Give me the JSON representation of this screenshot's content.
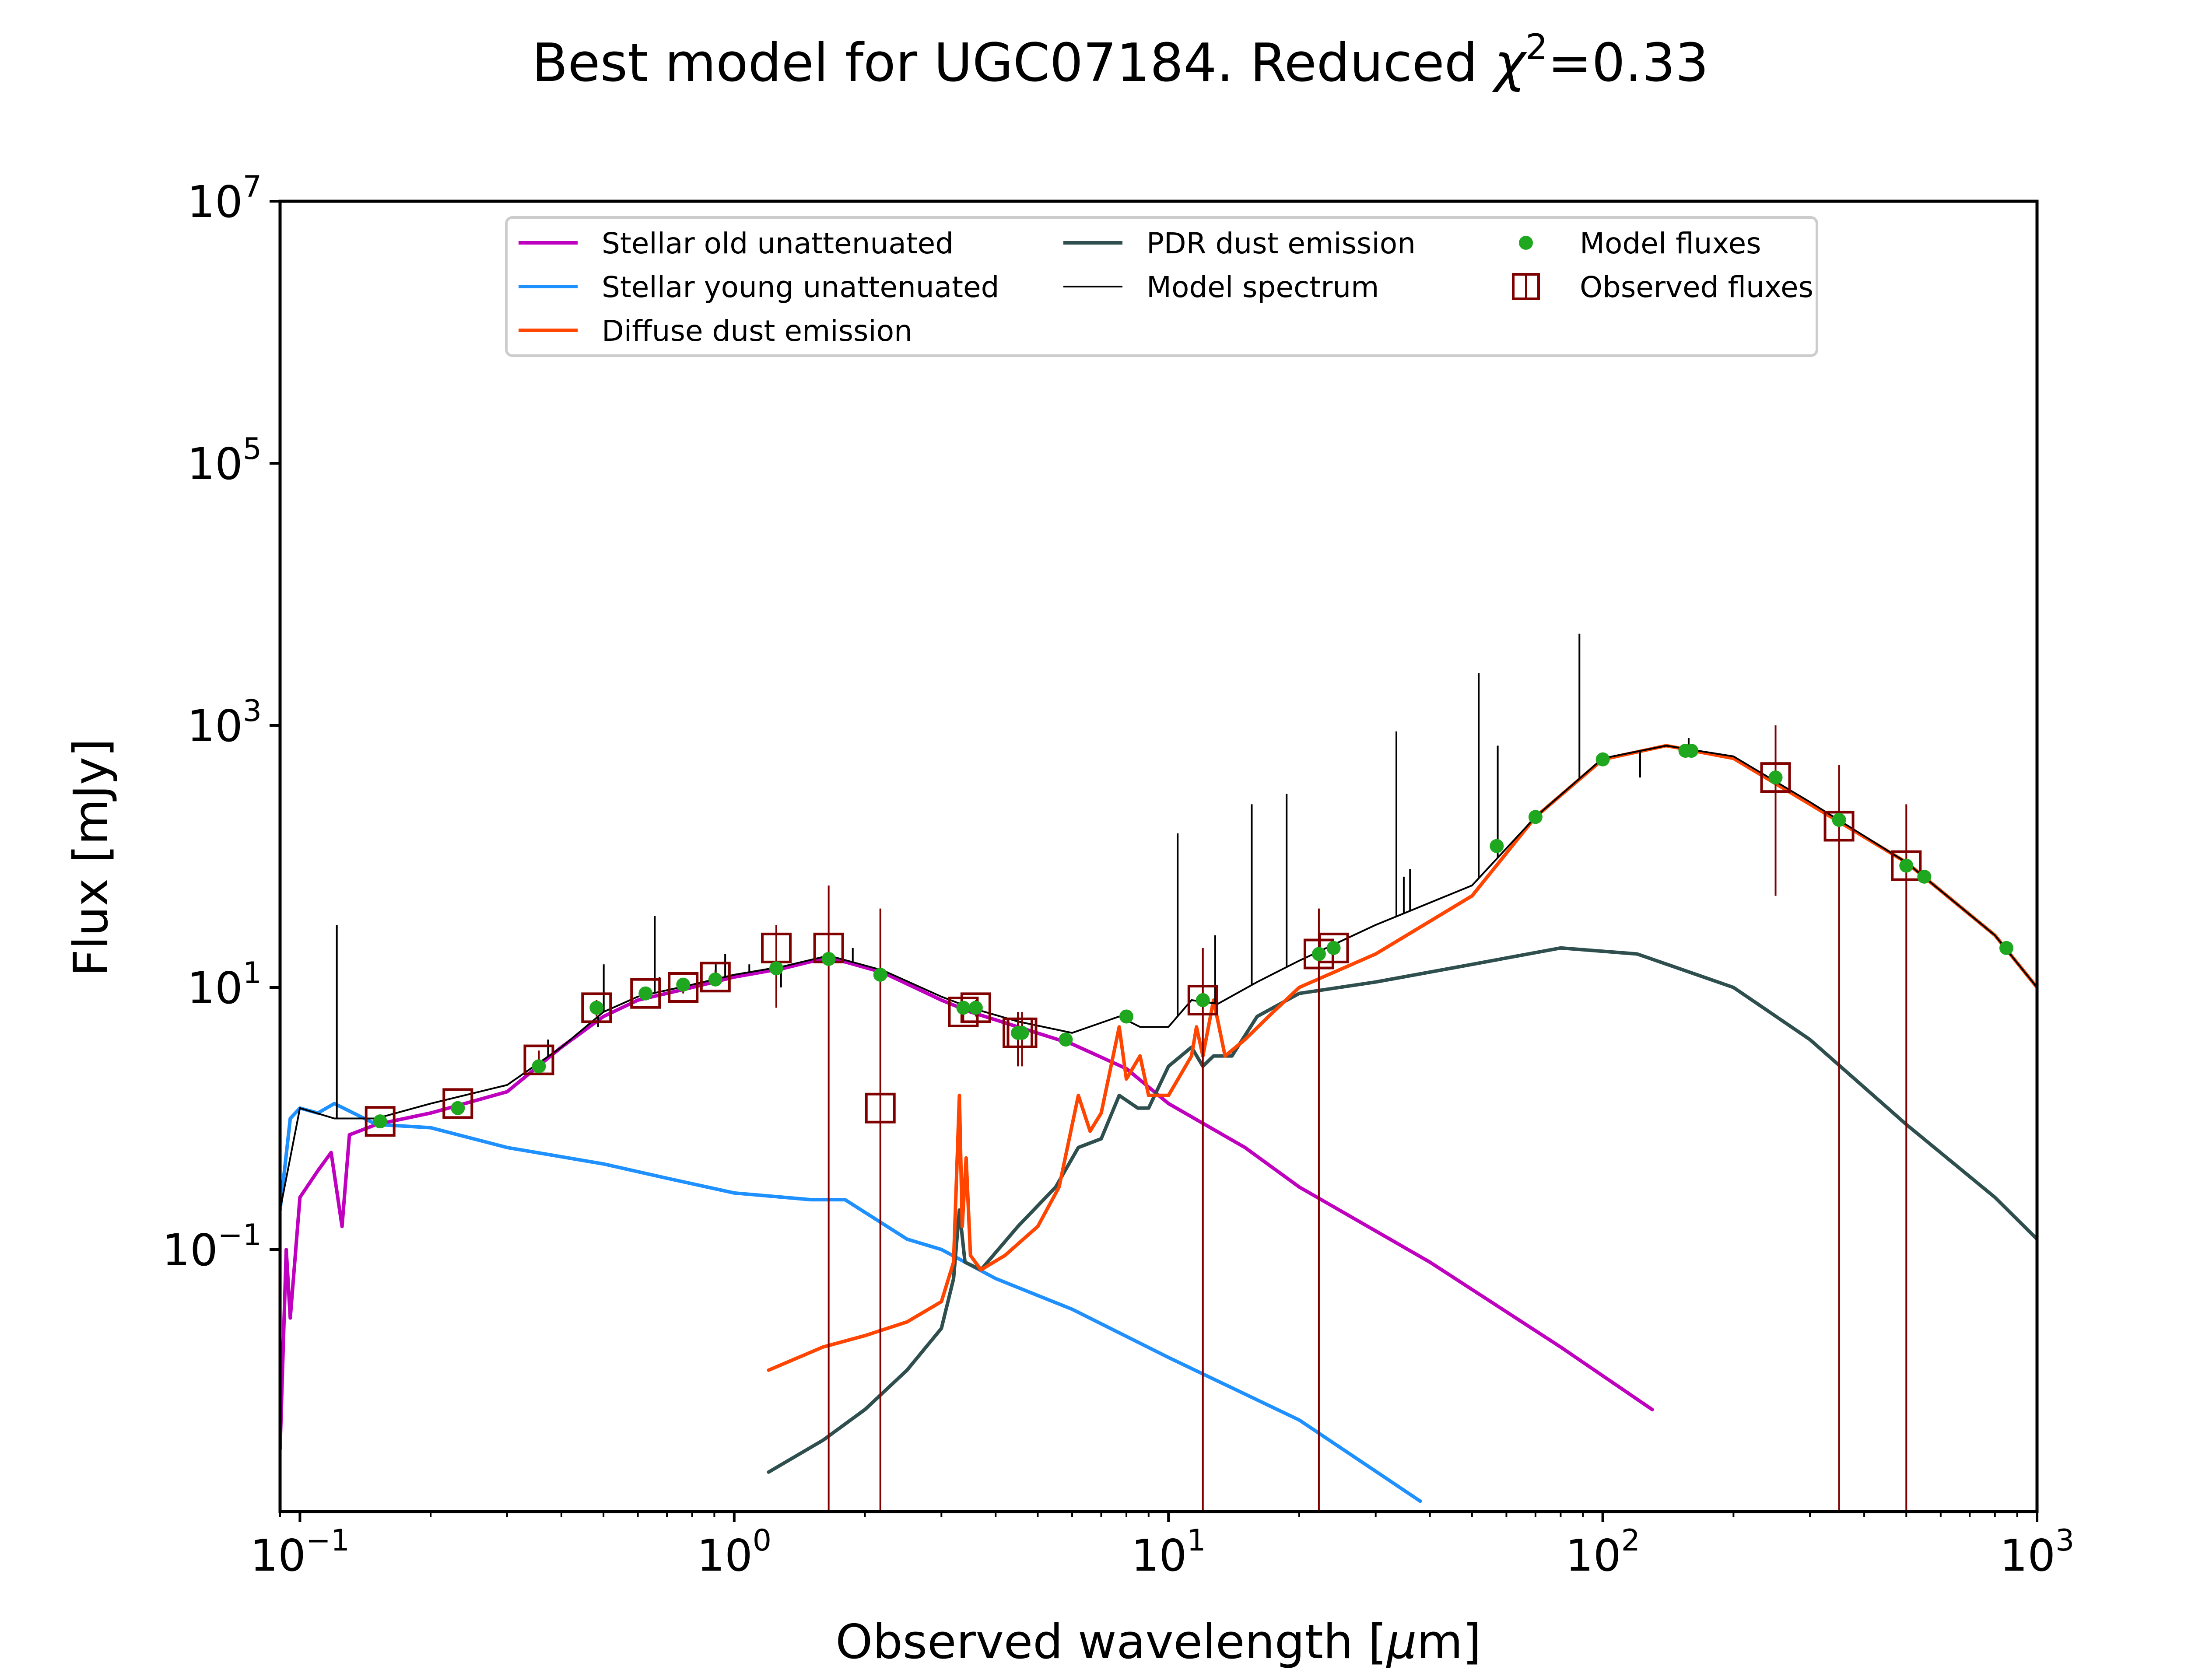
{
  "chart_data": {
    "type": "line",
    "title": "Best model for UGC07184. Reduced χ²=0.33",
    "title_main": "Best model for UGC07184. Reduced ",
    "title_chi": "χ",
    "title_chi_exp": "2",
    "title_value": "=0.33",
    "xlabel": "Observed wavelength [μm]",
    "xlabel_main": "Observed wavelength [",
    "xlabel_mu": "μ",
    "xlabel_unit": "m]",
    "ylabel": "Flux [mJy]",
    "x_scale": "log",
    "y_scale": "log",
    "xlim": [
      0.09,
      1000
    ],
    "ylim": [
      0.001,
      10000000
    ],
    "x_ticks": [
      {
        "value": 0.1,
        "base": "10",
        "exp": "−1"
      },
      {
        "value": 1,
        "base": "10",
        "exp": "0"
      },
      {
        "value": 10,
        "base": "10",
        "exp": "1"
      },
      {
        "value": 100,
        "base": "10",
        "exp": "2"
      },
      {
        "value": 1000,
        "base": "10",
        "exp": "3"
      }
    ],
    "y_ticks": [
      {
        "value": 0.1,
        "base": "10",
        "exp": "−1"
      },
      {
        "value": 10,
        "base": "10",
        "exp": "1"
      },
      {
        "value": 1000,
        "base": "10",
        "exp": "3"
      },
      {
        "value": 100000,
        "base": "10",
        "exp": "5"
      },
      {
        "value": 10000000,
        "base": "10",
        "exp": "7"
      }
    ],
    "grid": false,
    "legend_position": "top-center",
    "legend": [
      {
        "label": "Stellar old unattenuated",
        "kind": "line",
        "color": "#bf00bf"
      },
      {
        "label": "Stellar young unattenuated",
        "kind": "line",
        "color": "#1e90ff"
      },
      {
        "label": "Diffuse dust emission",
        "kind": "line",
        "color": "#ff4500"
      },
      {
        "label": "PDR dust emission",
        "kind": "line",
        "color": "#2f4f4f"
      },
      {
        "label": "Model spectrum",
        "kind": "thinline",
        "color": "#000000"
      },
      {
        "label": "Model fluxes",
        "kind": "dot",
        "color": "#1fa81f"
      },
      {
        "label": "Observed fluxes",
        "kind": "square",
        "color": "#800000"
      }
    ],
    "series": [
      {
        "name": "Stellar old unattenuated",
        "color": "#bf00bf",
        "points": [
          [
            0.09,
            0.003
          ],
          [
            0.093,
            0.1
          ],
          [
            0.095,
            0.03
          ],
          [
            0.1,
            0.25
          ],
          [
            0.11,
            0.4
          ],
          [
            0.118,
            0.55
          ],
          [
            0.125,
            0.15
          ],
          [
            0.13,
            0.75
          ],
          [
            0.15,
            0.9
          ],
          [
            0.2,
            1.1
          ],
          [
            0.3,
            1.6
          ],
          [
            0.4,
            3.5
          ],
          [
            0.5,
            6
          ],
          [
            0.6,
            8
          ],
          [
            0.8,
            10
          ],
          [
            1.0,
            12
          ],
          [
            1.3,
            14
          ],
          [
            1.65,
            17
          ],
          [
            2.2,
            13
          ],
          [
            3.0,
            8
          ],
          [
            3.5,
            6.5
          ],
          [
            4.5,
            5
          ],
          [
            6,
            3.7
          ],
          [
            8,
            2.4
          ],
          [
            10,
            1.3
          ],
          [
            15,
            0.6
          ],
          [
            20,
            0.3
          ],
          [
            40,
            0.08
          ],
          [
            80,
            0.018
          ],
          [
            130,
            0.006
          ]
        ]
      },
      {
        "name": "Stellar young unattenuated",
        "color": "#1e90ff",
        "points": [
          [
            0.09,
            0.2
          ],
          [
            0.095,
            1.0
          ],
          [
            0.1,
            1.2
          ],
          [
            0.11,
            1.1
          ],
          [
            0.12,
            1.3
          ],
          [
            0.15,
            0.9
          ],
          [
            0.2,
            0.85
          ],
          [
            0.3,
            0.6
          ],
          [
            0.5,
            0.45
          ],
          [
            0.7,
            0.35
          ],
          [
            1.0,
            0.27
          ],
          [
            1.5,
            0.24
          ],
          [
            1.8,
            0.24
          ],
          [
            2.5,
            0.12
          ],
          [
            3.0,
            0.1
          ],
          [
            4.0,
            0.06
          ],
          [
            6,
            0.035
          ],
          [
            10,
            0.015
          ],
          [
            20,
            0.005
          ],
          [
            38,
            0.0012
          ]
        ]
      },
      {
        "name": "Diffuse dust emission",
        "color": "#ff4500",
        "points": [
          [
            1.2,
            0.012
          ],
          [
            1.6,
            0.018
          ],
          [
            2.0,
            0.022
          ],
          [
            2.5,
            0.028
          ],
          [
            3.0,
            0.04
          ],
          [
            3.2,
            0.08
          ],
          [
            3.3,
            1.5
          ],
          [
            3.35,
            0.15
          ],
          [
            3.42,
            0.5
          ],
          [
            3.5,
            0.09
          ],
          [
            3.7,
            0.07
          ],
          [
            4.2,
            0.09
          ],
          [
            5.0,
            0.15
          ],
          [
            5.6,
            0.3
          ],
          [
            6.2,
            1.5
          ],
          [
            6.6,
            0.8
          ],
          [
            7.0,
            1.1
          ],
          [
            7.7,
            5
          ],
          [
            8.0,
            2
          ],
          [
            8.6,
            3
          ],
          [
            9.0,
            1.5
          ],
          [
            10,
            1.5
          ],
          [
            11.3,
            3
          ],
          [
            11.6,
            5
          ],
          [
            12,
            3
          ],
          [
            12.7,
            8
          ],
          [
            13.5,
            3
          ],
          [
            15,
            4
          ],
          [
            17,
            6
          ],
          [
            20,
            10
          ],
          [
            30,
            18
          ],
          [
            50,
            50
          ],
          [
            70,
            200
          ],
          [
            100,
            550
          ],
          [
            140,
            700
          ],
          [
            200,
            560
          ],
          [
            300,
            250
          ],
          [
            500,
            90
          ],
          [
            800,
            25
          ],
          [
            1000,
            10
          ]
        ]
      },
      {
        "name": "PDR dust emission",
        "color": "#2f4f4f",
        "points": [
          [
            1.2,
            0.002
          ],
          [
            1.6,
            0.0035
          ],
          [
            2.0,
            0.006
          ],
          [
            2.5,
            0.012
          ],
          [
            3.0,
            0.025
          ],
          [
            3.2,
            0.06
          ],
          [
            3.3,
            0.2
          ],
          [
            3.4,
            0.08
          ],
          [
            3.7,
            0.07
          ],
          [
            4.5,
            0.15
          ],
          [
            5.5,
            0.3
          ],
          [
            6.2,
            0.6
          ],
          [
            7.0,
            0.7
          ],
          [
            7.7,
            1.5
          ],
          [
            8.5,
            1.2
          ],
          [
            9,
            1.2
          ],
          [
            10,
            2.5
          ],
          [
            11.3,
            3.5
          ],
          [
            12,
            2.5
          ],
          [
            12.7,
            3
          ],
          [
            14,
            3
          ],
          [
            16,
            6
          ],
          [
            20,
            9
          ],
          [
            30,
            11
          ],
          [
            50,
            15
          ],
          [
            80,
            20
          ],
          [
            120,
            18
          ],
          [
            200,
            10
          ],
          [
            300,
            4
          ],
          [
            500,
            0.9
          ],
          [
            800,
            0.25
          ],
          [
            1000,
            0.12
          ]
        ]
      },
      {
        "name": "Model spectrum",
        "color": "#000000",
        "points": [
          [
            0.09,
            0.2
          ],
          [
            0.1,
            1.2
          ],
          [
            0.12,
            1.0
          ],
          [
            0.15,
            1.0
          ],
          [
            0.2,
            1.3
          ],
          [
            0.3,
            1.8
          ],
          [
            0.4,
            3.5
          ],
          [
            0.5,
            6.5
          ],
          [
            0.6,
            8.5
          ],
          [
            0.8,
            10.5
          ],
          [
            1.0,
            12.5
          ],
          [
            1.3,
            14.5
          ],
          [
            1.65,
            17.5
          ],
          [
            2.2,
            13.5
          ],
          [
            3.0,
            8.5
          ],
          [
            3.5,
            7
          ],
          [
            4.5,
            5.5
          ],
          [
            6,
            4.5
          ],
          [
            7.7,
            6
          ],
          [
            8.6,
            5
          ],
          [
            10,
            5
          ],
          [
            11.3,
            8
          ],
          [
            13,
            7.5
          ],
          [
            16,
            11
          ],
          [
            20,
            16
          ],
          [
            30,
            30
          ],
          [
            50,
            60
          ],
          [
            70,
            200
          ],
          [
            100,
            560
          ],
          [
            140,
            700
          ],
          [
            200,
            580
          ],
          [
            300,
            260
          ],
          [
            500,
            90
          ],
          [
            800,
            25
          ],
          [
            1000,
            10
          ]
        ]
      }
    ],
    "emission_lines": [
      [
        0.1216,
        30
      ],
      [
        0.3727,
        4
      ],
      [
        0.4861,
        5
      ],
      [
        0.5007,
        15
      ],
      [
        0.6563,
        35
      ],
      [
        0.6731,
        12
      ],
      [
        0.9069,
        15
      ],
      [
        0.9532,
        18
      ],
      [
        1.0833,
        15
      ],
      [
        1.2818,
        10
      ],
      [
        1.8751,
        20
      ],
      [
        10.5,
        150
      ],
      [
        12.81,
        25
      ],
      [
        15.55,
        250
      ],
      [
        18.71,
        300
      ],
      [
        33.48,
        900
      ],
      [
        34.82,
        70
      ],
      [
        36,
        80
      ],
      [
        51.81,
        2500
      ],
      [
        57.3,
        700
      ],
      [
        88.36,
        5000
      ],
      [
        121.9,
        400
      ],
      [
        157.7,
        800
      ]
    ],
    "model_fluxes": [
      [
        0.153,
        0.95
      ],
      [
        0.231,
        1.2
      ],
      [
        0.355,
        2.5
      ],
      [
        0.482,
        7
      ],
      [
        0.625,
        9
      ],
      [
        0.763,
        10.5
      ],
      [
        0.905,
        11.5
      ],
      [
        1.25,
        14
      ],
      [
        1.65,
        16.5
      ],
      [
        2.17,
        12.5
      ],
      [
        3.37,
        7
      ],
      [
        3.6,
        7
      ],
      [
        4.5,
        4.5
      ],
      [
        4.6,
        4.5
      ],
      [
        5.8,
        4
      ],
      [
        8.0,
        6
      ],
      [
        12,
        8
      ],
      [
        22.2,
        18
      ],
      [
        24,
        20
      ],
      [
        57,
        120
      ],
      [
        70,
        200
      ],
      [
        100,
        550
      ],
      [
        155,
        640
      ],
      [
        160,
        640
      ],
      [
        250,
        400
      ],
      [
        350,
        190
      ],
      [
        500,
        85
      ],
      [
        550,
        70
      ],
      [
        850,
        20
      ]
    ],
    "observed_fluxes": [
      {
        "x": 0.153,
        "y": 0.95,
        "err_lo": 0.95,
        "err_hi": 0.95
      },
      {
        "x": 0.231,
        "y": 1.3,
        "err_lo": 1.3,
        "err_hi": 1.3
      },
      {
        "x": 0.355,
        "y": 2.8,
        "err_lo": 2.3,
        "err_hi": 3.3
      },
      {
        "x": 0.482,
        "y": 7,
        "err_lo": 6,
        "err_hi": 8
      },
      {
        "x": 0.625,
        "y": 9,
        "err_lo": 8,
        "err_hi": 10
      },
      {
        "x": 0.763,
        "y": 10,
        "err_lo": 9,
        "err_hi": 11
      },
      {
        "x": 0.905,
        "y": 12,
        "err_lo": 10.5,
        "err_hi": 13.5
      },
      {
        "x": 1.25,
        "y": 20,
        "err_lo": 7,
        "err_hi": 30
      },
      {
        "x": 1.65,
        "y": 20,
        "err_lo": 0.001,
        "err_hi": 60
      },
      {
        "x": 2.17,
        "y": 1.2,
        "err_lo": 0.001,
        "err_hi": 40
      },
      {
        "x": 3.37,
        "y": 6.5,
        "err_lo": 5.5,
        "err_hi": 7.5
      },
      {
        "x": 3.6,
        "y": 7,
        "err_lo": 6,
        "err_hi": 8
      },
      {
        "x": 4.5,
        "y": 4.5,
        "err_lo": 2.5,
        "err_hi": 6.5
      },
      {
        "x": 4.6,
        "y": 4.5,
        "err_lo": 2.5,
        "err_hi": 6.5
      },
      {
        "x": 12,
        "y": 8,
        "err_lo": 0.001,
        "err_hi": 20
      },
      {
        "x": 22.2,
        "y": 18,
        "err_lo": 0.001,
        "err_hi": 40
      },
      {
        "x": 24,
        "y": 20,
        "err_lo": 18,
        "err_hi": 22
      },
      {
        "x": 250,
        "y": 400,
        "err_lo": 50,
        "err_hi": 1000
      },
      {
        "x": 350,
        "y": 170,
        "err_lo": 0.001,
        "err_hi": 500
      },
      {
        "x": 500,
        "y": 85,
        "err_lo": 0.001,
        "err_hi": 250
      }
    ]
  }
}
